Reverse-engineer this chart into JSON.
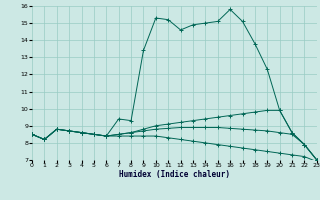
{
  "xlabel": "Humidex (Indice chaleur)",
  "x_min": 0,
  "x_max": 23,
  "y_min": 7,
  "y_max": 16,
  "background_color": "#cce8e4",
  "grid_color": "#99ccc4",
  "line_color": "#006655",
  "lines": [
    {
      "x": [
        0,
        1,
        2,
        3,
        4,
        5,
        6,
        7,
        8,
        9,
        10,
        11,
        12,
        13,
        14,
        15,
        16,
        17,
        18,
        19,
        20,
        21,
        22,
        23
      ],
      "y": [
        8.5,
        8.2,
        8.8,
        8.7,
        8.6,
        8.5,
        8.4,
        9.4,
        9.3,
        13.4,
        15.3,
        15.2,
        14.6,
        14.9,
        15.0,
        15.1,
        15.8,
        15.1,
        13.8,
        12.3,
        9.9,
        8.6,
        7.9,
        7.0
      ]
    },
    {
      "x": [
        0,
        1,
        2,
        3,
        4,
        5,
        6,
        7,
        8,
        9,
        10,
        11,
        12,
        13,
        14,
        15,
        16,
        17,
        18,
        19,
        20,
        21,
        22,
        23
      ],
      "y": [
        8.5,
        8.2,
        8.8,
        8.7,
        8.6,
        8.5,
        8.4,
        8.5,
        8.6,
        8.8,
        9.0,
        9.1,
        9.2,
        9.3,
        9.4,
        9.5,
        9.6,
        9.7,
        9.8,
        9.9,
        9.9,
        8.6,
        7.9,
        7.0
      ]
    },
    {
      "x": [
        0,
        1,
        2,
        3,
        4,
        5,
        6,
        7,
        8,
        9,
        10,
        11,
        12,
        13,
        14,
        15,
        16,
        17,
        18,
        19,
        20,
        21,
        22,
        23
      ],
      "y": [
        8.5,
        8.2,
        8.8,
        8.7,
        8.6,
        8.5,
        8.4,
        8.5,
        8.6,
        8.7,
        8.8,
        8.85,
        8.9,
        8.9,
        8.9,
        8.9,
        8.85,
        8.8,
        8.75,
        8.7,
        8.6,
        8.5,
        7.9,
        7.0
      ]
    },
    {
      "x": [
        0,
        1,
        2,
        3,
        4,
        5,
        6,
        7,
        8,
        9,
        10,
        11,
        12,
        13,
        14,
        15,
        16,
        17,
        18,
        19,
        20,
        21,
        22,
        23
      ],
      "y": [
        8.5,
        8.2,
        8.8,
        8.7,
        8.6,
        8.5,
        8.4,
        8.4,
        8.4,
        8.4,
        8.4,
        8.3,
        8.2,
        8.1,
        8.0,
        7.9,
        7.8,
        7.7,
        7.6,
        7.5,
        7.4,
        7.3,
        7.2,
        6.9
      ]
    }
  ]
}
